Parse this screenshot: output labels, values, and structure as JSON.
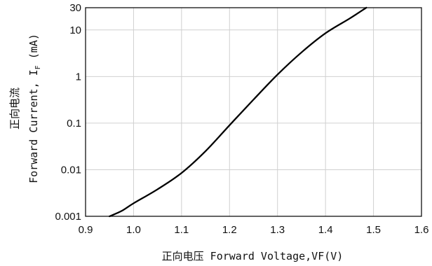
{
  "chart_data": {
    "type": "line",
    "xlabel": "正向电压 Forward Voltage,VF(V)",
    "ylabel_line1": "正向电流",
    "ylabel_line2": "Forward Current, I",
    "ylabel_subscript": "F",
    "ylabel_unit": " (mA)",
    "xlim": [
      0.9,
      1.6
    ],
    "ylim": [
      0.001,
      30
    ],
    "yscale": "log",
    "grid": true,
    "x_ticks": [
      "0.9",
      "1.0",
      "1.1",
      "1.2",
      "1.3",
      "1.4",
      "1.5",
      "1.6"
    ],
    "y_ticks": [
      "0.001",
      "0.01",
      "0.1",
      "1",
      "10",
      "30"
    ],
    "y_tick_values": [
      0.001,
      0.01,
      0.1,
      1,
      10,
      30
    ],
    "series": [
      {
        "color": "#000000",
        "x": [
          0.95,
          0.975,
          1.0,
          1.05,
          1.1,
          1.15,
          1.2,
          1.25,
          1.3,
          1.35,
          1.4,
          1.45,
          1.485
        ],
        "y": [
          0.001,
          0.0013,
          0.0019,
          0.0038,
          0.0085,
          0.025,
          0.09,
          0.32,
          1.1,
          3.3,
          8.5,
          17.5,
          30
        ]
      }
    ]
  }
}
